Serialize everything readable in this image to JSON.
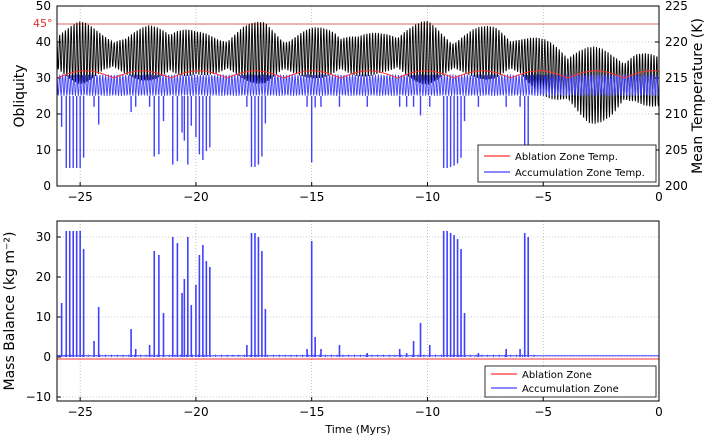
{
  "chart_data": [
    {
      "type": "line",
      "ylabel": "Obliquity",
      "y2label": "Mean Temperature (K)",
      "xlim": [
        -26,
        0
      ],
      "ylim": [
        0,
        50
      ],
      "y2lim": [
        200,
        225
      ],
      "xticks": [
        -25,
        -20,
        -15,
        -10,
        -5,
        0
      ],
      "xtick_labels": [
        "−25",
        "−20",
        "−15",
        "−10",
        "−5",
        "0"
      ],
      "yticks": [
        0,
        10,
        20,
        30,
        40,
        50
      ],
      "ytick_labels": [
        "0",
        "10",
        "20",
        "30",
        "40",
        "50"
      ],
      "y2ticks": [
        200,
        205,
        210,
        215,
        220,
        225
      ],
      "y2tick_labels": [
        "200",
        "205",
        "210",
        "215",
        "220",
        "225"
      ],
      "grid": true,
      "legend": "bottom-right",
      "reference_line": {
        "y": 45,
        "label": "45°",
        "color": "#e06060"
      },
      "colors": {
        "obliquity": "#000000",
        "ablation": "#ff3333",
        "accumulation": "#4040ff"
      },
      "series": [
        {
          "name": "",
          "axis": "left",
          "description_values": {
            "x": [
              -26,
              -25,
              -24,
              -23,
              -22,
              -21,
              -20,
              -19,
              -18,
              -17,
              -16,
              -15,
              -14,
              -13,
              -12,
              -11,
              -10,
              -9,
              -8,
              -7,
              -6,
              -5,
              -4,
              -3,
              -2,
              -1,
              0
            ],
            "mid": [
              37,
              37,
              37,
              36,
              37,
              37,
              37,
              36,
              37,
              37,
              36,
              37,
              37,
              36,
              37,
              37,
              37,
              36,
              37,
              37,
              36,
              33,
              30,
              28,
              28,
              30,
              29
            ],
            "amp": [
              8,
              9,
              6,
              6,
              8,
              9,
              6,
              6,
              8,
              9,
              6,
              7,
              8,
              6,
              6,
              8,
              9,
              6,
              7,
              8,
              6,
              8,
              10,
              11,
              10,
              8,
              7
            ]
          }
        },
        {
          "name": "Ablation Zone Temp.",
          "axis": "right",
          "baseline": 215,
          "peak": 216
        },
        {
          "name": "Accumulation Zone Temp.",
          "axis": "right",
          "upper": 215.5,
          "lower": 212.5,
          "dip_min": 202.5
        }
      ]
    },
    {
      "type": "line",
      "xlabel": "Time (Myrs)",
      "ylabel": "Mass Balance (kg m⁻²)",
      "xlim": [
        -26,
        0
      ],
      "ylim": [
        -11,
        34
      ],
      "xticks": [
        -25,
        -20,
        -15,
        -10,
        -5,
        0
      ],
      "xtick_labels": [
        "−25",
        "−20",
        "−15",
        "−10",
        "−5",
        "0"
      ],
      "yticks": [
        -10,
        0,
        10,
        20,
        30
      ],
      "ytick_labels": [
        "−10",
        "0",
        "10",
        "20",
        "30"
      ],
      "grid": true,
      "legend": "bottom-right",
      "colors": {
        "ablation": "#ff3333",
        "accumulation": "#4040ff"
      },
      "series": [
        {
          "name": "Ablation Zone",
          "values_note": "",
          "baseline": -0.5
        },
        {
          "name": "Accumulation Zone",
          "spikes": [
            {
              "x": -25.8,
              "y": 13.5
            },
            {
              "x": -25.6,
              "y": 31.5
            },
            {
              "x": -25.45,
              "y": 31.5
            },
            {
              "x": -25.3,
              "y": 31.5
            },
            {
              "x": -25.15,
              "y": 31.5
            },
            {
              "x": -25.0,
              "y": 31.5
            },
            {
              "x": -24.85,
              "y": 27
            },
            {
              "x": -24.4,
              "y": 4
            },
            {
              "x": -24.2,
              "y": 12.5
            },
            {
              "x": -22.8,
              "y": 7
            },
            {
              "x": -22.6,
              "y": 2
            },
            {
              "x": -22.0,
              "y": 3
            },
            {
              "x": -21.8,
              "y": 26.5
            },
            {
              "x": -21.6,
              "y": 25.5
            },
            {
              "x": -21.4,
              "y": 11
            },
            {
              "x": -21.0,
              "y": 30
            },
            {
              "x": -20.8,
              "y": 28.5
            },
            {
              "x": -20.6,
              "y": 16
            },
            {
              "x": -20.5,
              "y": 19.5
            },
            {
              "x": -20.35,
              "y": 30
            },
            {
              "x": -20.2,
              "y": 13
            },
            {
              "x": -20.0,
              "y": 18
            },
            {
              "x": -19.85,
              "y": 25.5
            },
            {
              "x": -19.7,
              "y": 28
            },
            {
              "x": -19.55,
              "y": 24
            },
            {
              "x": -19.4,
              "y": 22.5
            },
            {
              "x": -17.8,
              "y": 3
            },
            {
              "x": -17.6,
              "y": 31
            },
            {
              "x": -17.45,
              "y": 31
            },
            {
              "x": -17.3,
              "y": 30
            },
            {
              "x": -17.15,
              "y": 26.5
            },
            {
              "x": -17.0,
              "y": 12
            },
            {
              "x": -15.2,
              "y": 2
            },
            {
              "x": -15.0,
              "y": 29
            },
            {
              "x": -14.85,
              "y": 5
            },
            {
              "x": -14.6,
              "y": 2
            },
            {
              "x": -13.8,
              "y": 3
            },
            {
              "x": -12.6,
              "y": 1
            },
            {
              "x": -11.2,
              "y": 2
            },
            {
              "x": -10.9,
              "y": 1
            },
            {
              "x": -10.6,
              "y": 4
            },
            {
              "x": -10.3,
              "y": 8.5
            },
            {
              "x": -9.9,
              "y": 3
            },
            {
              "x": -9.3,
              "y": 31.5
            },
            {
              "x": -9.15,
              "y": 31.5
            },
            {
              "x": -9.0,
              "y": 31
            },
            {
              "x": -8.85,
              "y": 30.5
            },
            {
              "x": -8.7,
              "y": 29.5
            },
            {
              "x": -8.55,
              "y": 27
            },
            {
              "x": -8.4,
              "y": 11
            },
            {
              "x": -7.8,
              "y": 1
            },
            {
              "x": -6.6,
              "y": 2
            },
            {
              "x": -6.0,
              "y": 2
            },
            {
              "x": -5.8,
              "y": 31
            },
            {
              "x": -5.65,
              "y": 30
            }
          ]
        }
      ]
    }
  ]
}
